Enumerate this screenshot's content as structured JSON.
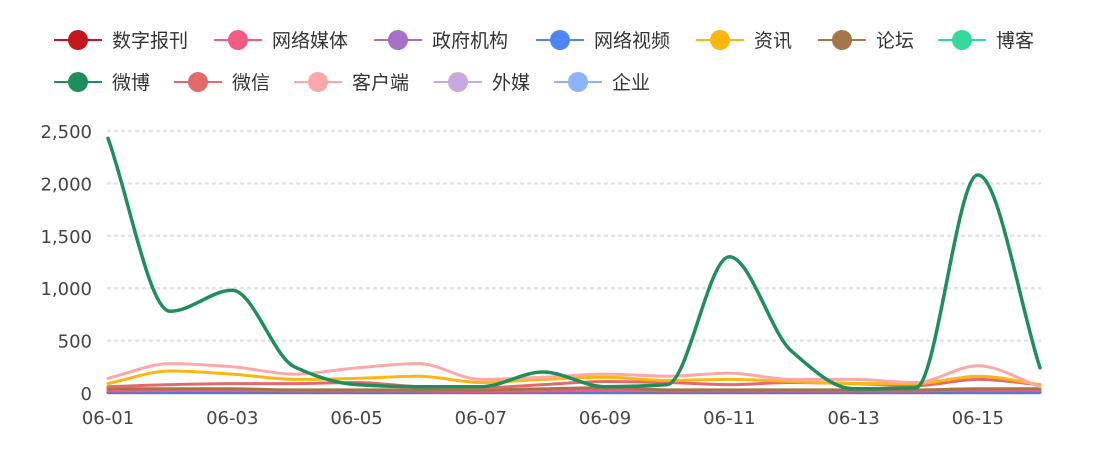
{
  "chart_data": {
    "type": "line",
    "title": "",
    "xlabel": "",
    "ylabel": "",
    "categories": [
      "06-01",
      "06-02",
      "06-03",
      "06-04",
      "06-05",
      "06-06",
      "06-07",
      "06-08",
      "06-09",
      "06-10",
      "06-11",
      "06-12",
      "06-13",
      "06-14",
      "06-15",
      "06-16"
    ],
    "x_tick_labels": [
      "06-01",
      "06-03",
      "06-05",
      "06-07",
      "06-09",
      "06-11",
      "06-13",
      "06-15"
    ],
    "y_ticks": [
      0,
      500,
      1000,
      1500,
      2000,
      2500
    ],
    "y_tick_labels": [
      "0",
      "500",
      "1,000",
      "1,500",
      "2,000",
      "2,500"
    ],
    "ylim": [
      0,
      2500
    ],
    "grid": "horizontal dotted",
    "legend_position": "top-left",
    "series": [
      {
        "name": "数字报刊",
        "color": "#c4161c",
        "values": [
          10,
          10,
          10,
          10,
          10,
          10,
          10,
          10,
          10,
          10,
          10,
          10,
          10,
          10,
          10,
          10
        ]
      },
      {
        "name": "网络媒体",
        "color": "#f45b82",
        "values": [
          20,
          25,
          25,
          20,
          20,
          20,
          15,
          20,
          25,
          20,
          20,
          20,
          20,
          20,
          30,
          30
        ]
      },
      {
        "name": "政府机构",
        "color": "#a76fc8",
        "values": [
          5,
          5,
          5,
          5,
          5,
          5,
          5,
          5,
          5,
          5,
          5,
          5,
          5,
          5,
          5,
          5
        ]
      },
      {
        "name": "网络视频",
        "color": "#4f86f7",
        "values": [
          15,
          15,
          15,
          15,
          15,
          15,
          15,
          15,
          15,
          15,
          15,
          15,
          15,
          15,
          15,
          15
        ]
      },
      {
        "name": "资讯",
        "color": "#fbb70f",
        "values": [
          90,
          210,
          180,
          130,
          140,
          160,
          100,
          130,
          150,
          120,
          130,
          110,
          90,
          90,
          160,
          80
        ]
      },
      {
        "name": "论坛",
        "color": "#a47549",
        "values": [
          40,
          40,
          40,
          30,
          30,
          30,
          30,
          40,
          50,
          30,
          30,
          30,
          30,
          30,
          40,
          40
        ]
      },
      {
        "name": "博客",
        "color": "#35d99b",
        "values": [
          5,
          5,
          5,
          5,
          5,
          5,
          5,
          5,
          5,
          5,
          5,
          5,
          5,
          5,
          5,
          5
        ]
      },
      {
        "name": "微博",
        "color": "#208e5c",
        "values": [
          2430,
          780,
          980,
          250,
          80,
          60,
          60,
          200,
          60,
          80,
          1300,
          400,
          40,
          50,
          2080,
          240
        ]
      },
      {
        "name": "微信",
        "color": "#e36a6a",
        "values": [
          60,
          80,
          90,
          90,
          100,
          60,
          50,
          80,
          110,
          100,
          80,
          100,
          90,
          70,
          130,
          80
        ]
      },
      {
        "name": "客户端",
        "color": "#fca7a9",
        "values": [
          140,
          280,
          250,
          180,
          240,
          280,
          130,
          150,
          180,
          160,
          190,
          130,
          130,
          100,
          260,
          60
        ]
      },
      {
        "name": "外媒",
        "color": "#c7a8df",
        "values": [
          3,
          3,
          3,
          3,
          3,
          3,
          3,
          3,
          3,
          3,
          3,
          3,
          3,
          3,
          3,
          3
        ]
      },
      {
        "name": "企业",
        "color": "#8eb2fb",
        "values": [
          3,
          3,
          3,
          3,
          3,
          3,
          3,
          3,
          3,
          3,
          3,
          3,
          3,
          3,
          3,
          3
        ]
      }
    ]
  }
}
